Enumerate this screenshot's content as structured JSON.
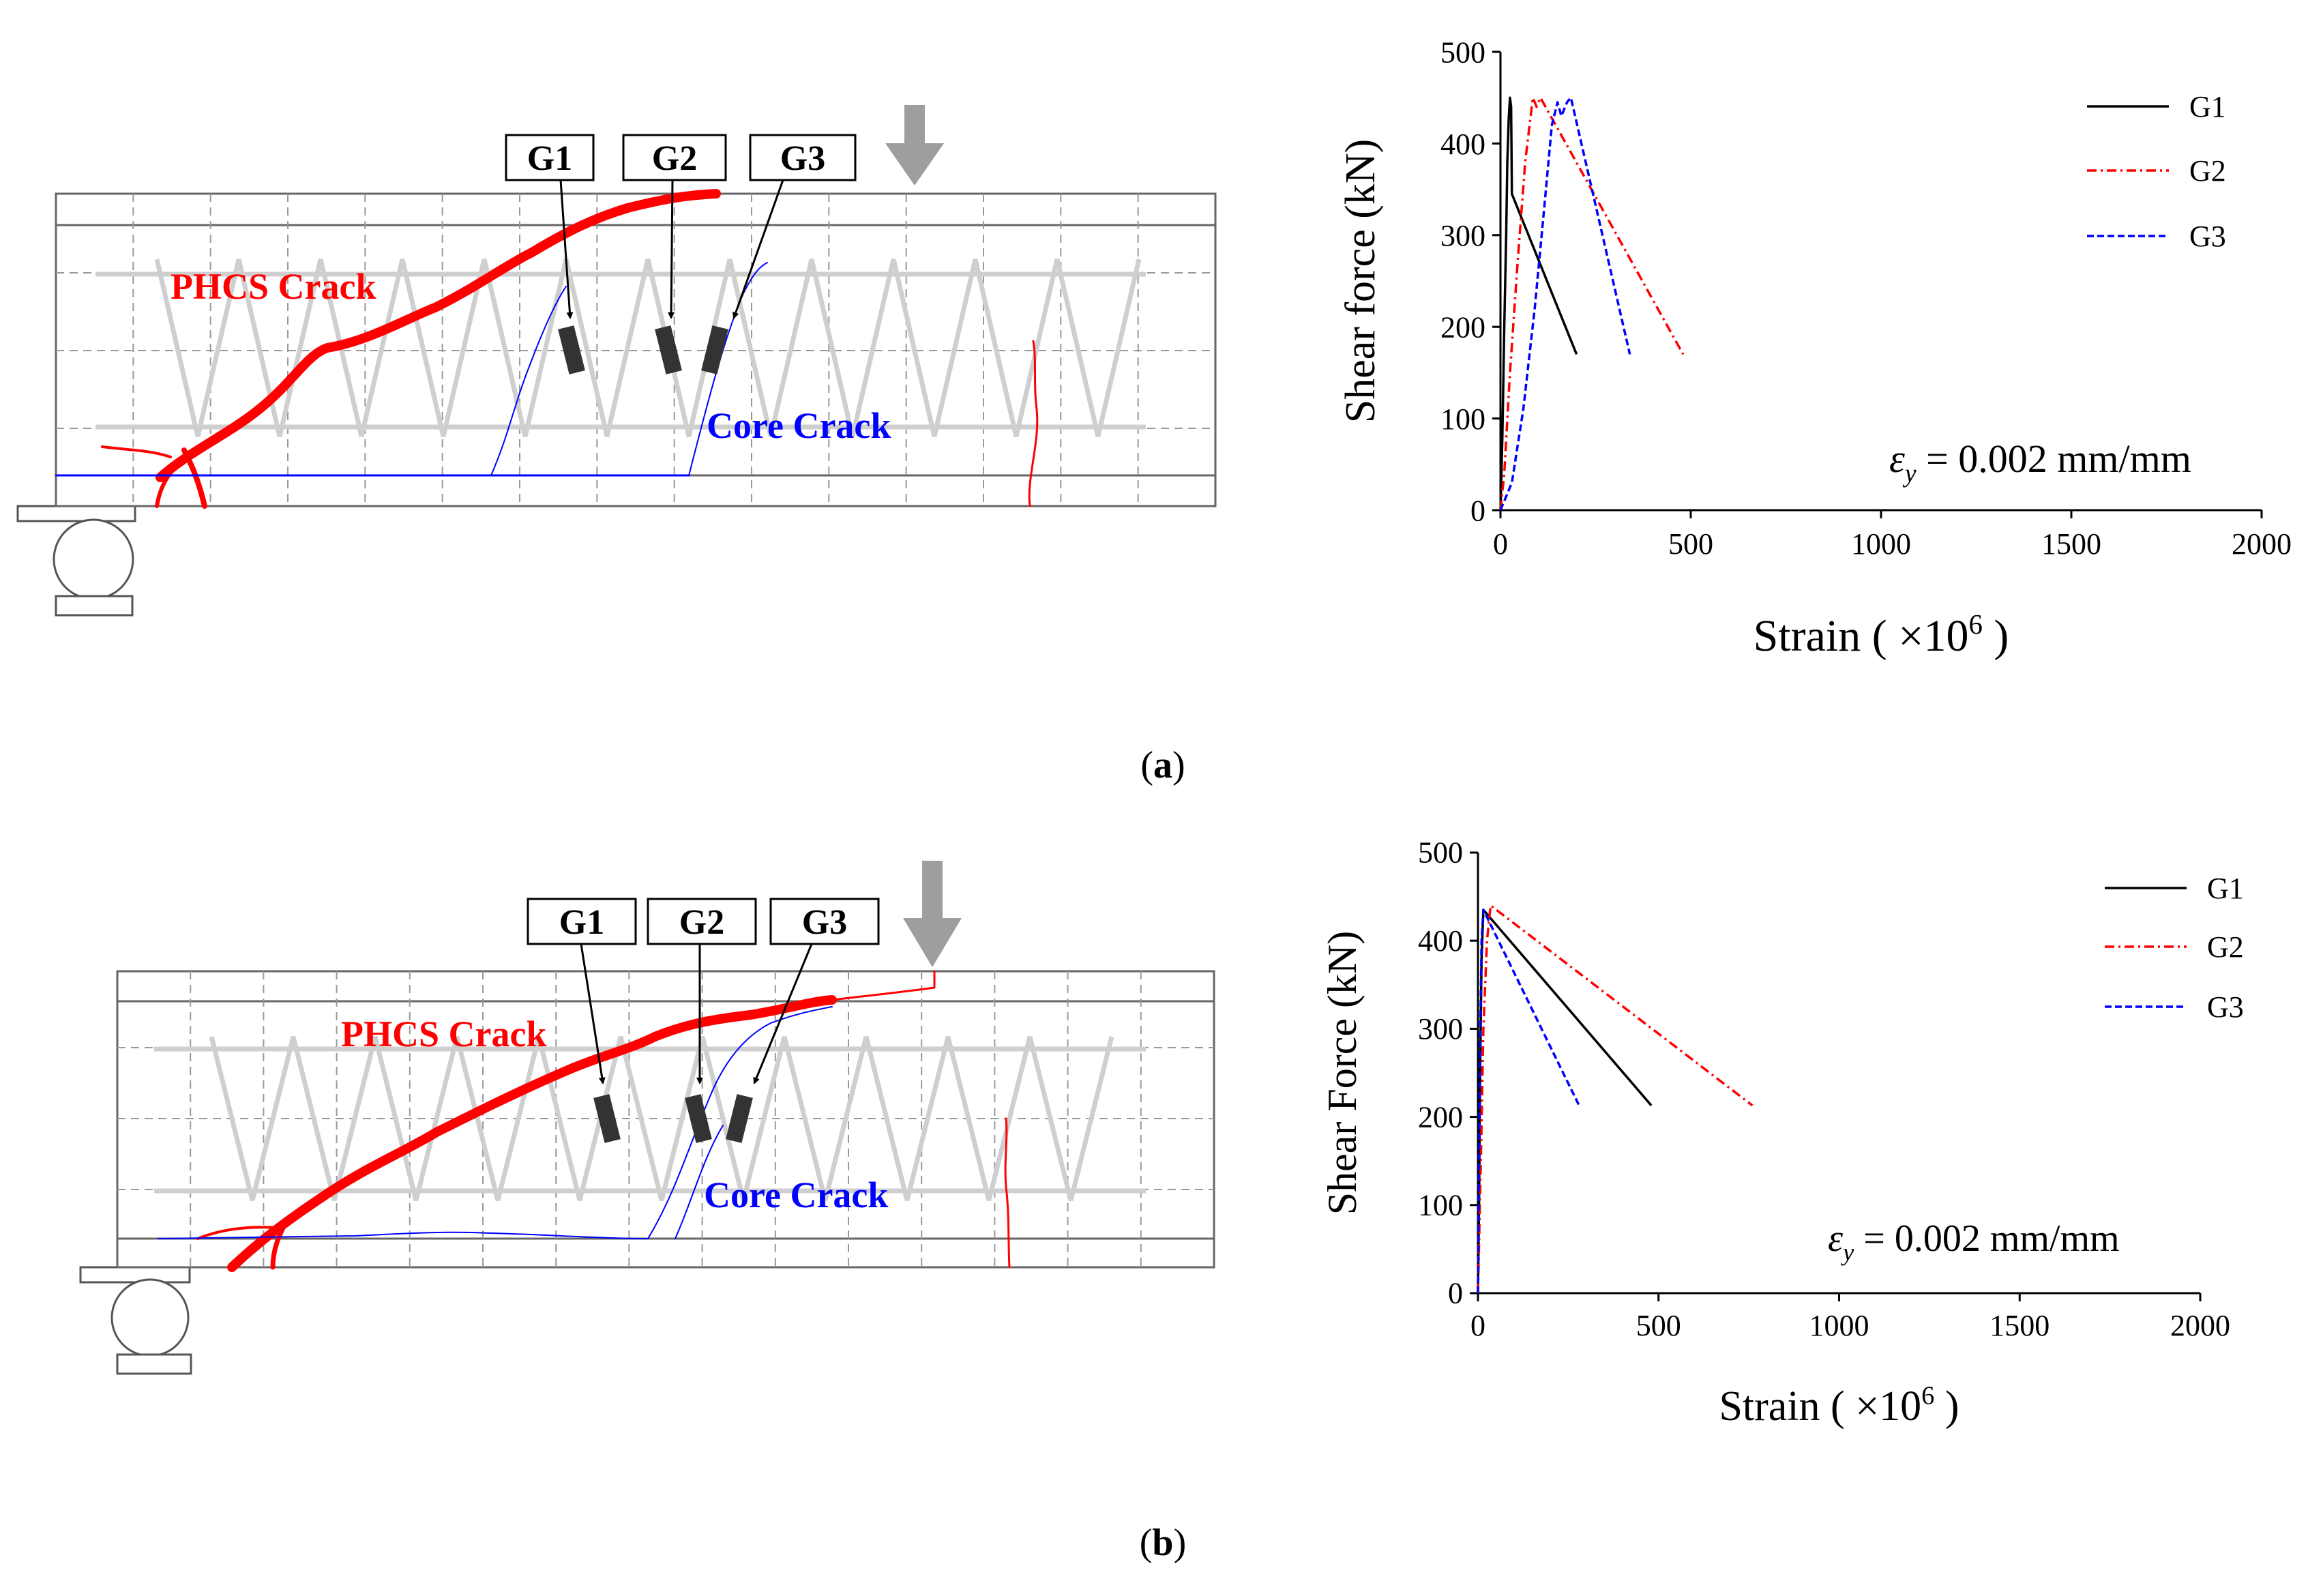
{
  "panels": [
    {
      "id": "a",
      "panel_label": "(a)",
      "panel_label_letter": "a",
      "diagram": {
        "gauges": [
          "G1",
          "G2",
          "G3"
        ],
        "phcs_crack_label": "PHCS Crack",
        "core_crack_label": "Core Crack"
      },
      "annotation": {
        "symbol": "ε",
        "subscript": "y",
        "rest": " = 0.002 mm/mm"
      }
    },
    {
      "id": "b",
      "panel_label": "(b)",
      "panel_label_letter": "b",
      "diagram": {
        "gauges": [
          "G1",
          "G2",
          "G3"
        ],
        "phcs_crack_label": "PHCS Crack",
        "core_crack_label": "Core Crack"
      },
      "annotation": {
        "symbol": "ε",
        "subscript": "y",
        "rest": " = 0.002 mm/mm"
      }
    }
  ],
  "colors": {
    "G1": "#000000",
    "G2": "#ff0000",
    "G3": "#0000ff",
    "phcs_crack": "#ff0000",
    "core_crack": "#0000ff"
  },
  "chart_data": [
    {
      "type": "line",
      "panel": "a",
      "xlabel": "Strain ( ×10⁶ )",
      "xlabel_main": "Strain (",
      "xlabel_times": "×10",
      "xlabel_sup": "6",
      "xlabel_close": ")",
      "ylabel": "Shear force (kN)",
      "xlim": [
        0,
        2000
      ],
      "ylim": [
        0,
        500
      ],
      "xticks": [
        0,
        500,
        1000,
        1500,
        2000
      ],
      "yticks": [
        0,
        100,
        200,
        300,
        400,
        500
      ],
      "legend_position": "top-right",
      "series": [
        {
          "name": "G1",
          "style": "solid",
          "x": [
            0,
            5,
            10,
            15,
            18,
            22,
            25,
            28,
            30,
            200
          ],
          "y": [
            0,
            80,
            200,
            300,
            380,
            430,
            450,
            440,
            345,
            170
          ]
        },
        {
          "name": "G2",
          "style": "dashdot",
          "x": [
            0,
            10,
            25,
            45,
            65,
            85,
            95,
            105,
            480
          ],
          "y": [
            0,
            40,
            150,
            270,
            380,
            450,
            440,
            450,
            170
          ]
        },
        {
          "name": "G3",
          "style": "dashed",
          "x": [
            0,
            30,
            60,
            90,
            115,
            135,
            150,
            160,
            175,
            185,
            340
          ],
          "y": [
            0,
            30,
            110,
            220,
            330,
            420,
            445,
            430,
            445,
            450,
            170
          ]
        }
      ]
    },
    {
      "type": "line",
      "panel": "b",
      "xlabel": "Strain ( ×10⁶ )",
      "xlabel_main": "Strain (",
      "xlabel_times": "×10",
      "xlabel_sup": "6",
      "xlabel_close": ")",
      "ylabel": "Shear Force (kN)",
      "xlim": [
        0,
        2000
      ],
      "ylim": [
        0,
        500
      ],
      "xticks": [
        0,
        500,
        1000,
        1500,
        2000
      ],
      "yticks": [
        0,
        100,
        200,
        300,
        400,
        500
      ],
      "legend_position": "top-right",
      "series": [
        {
          "name": "G1",
          "style": "solid",
          "x": [
            0,
            3,
            6,
            10,
            15,
            480
          ],
          "y": [
            0,
            100,
            250,
            380,
            435,
            213
          ]
        },
        {
          "name": "G2",
          "style": "dashdot",
          "x": [
            0,
            8,
            15,
            25,
            35,
            760
          ],
          "y": [
            0,
            150,
            300,
            400,
            440,
            213
          ]
        },
        {
          "name": "G3",
          "style": "dashed",
          "x": [
            0,
            2,
            5,
            10,
            15,
            280
          ],
          "y": [
            0,
            100,
            250,
            400,
            435,
            213
          ]
        }
      ]
    }
  ]
}
